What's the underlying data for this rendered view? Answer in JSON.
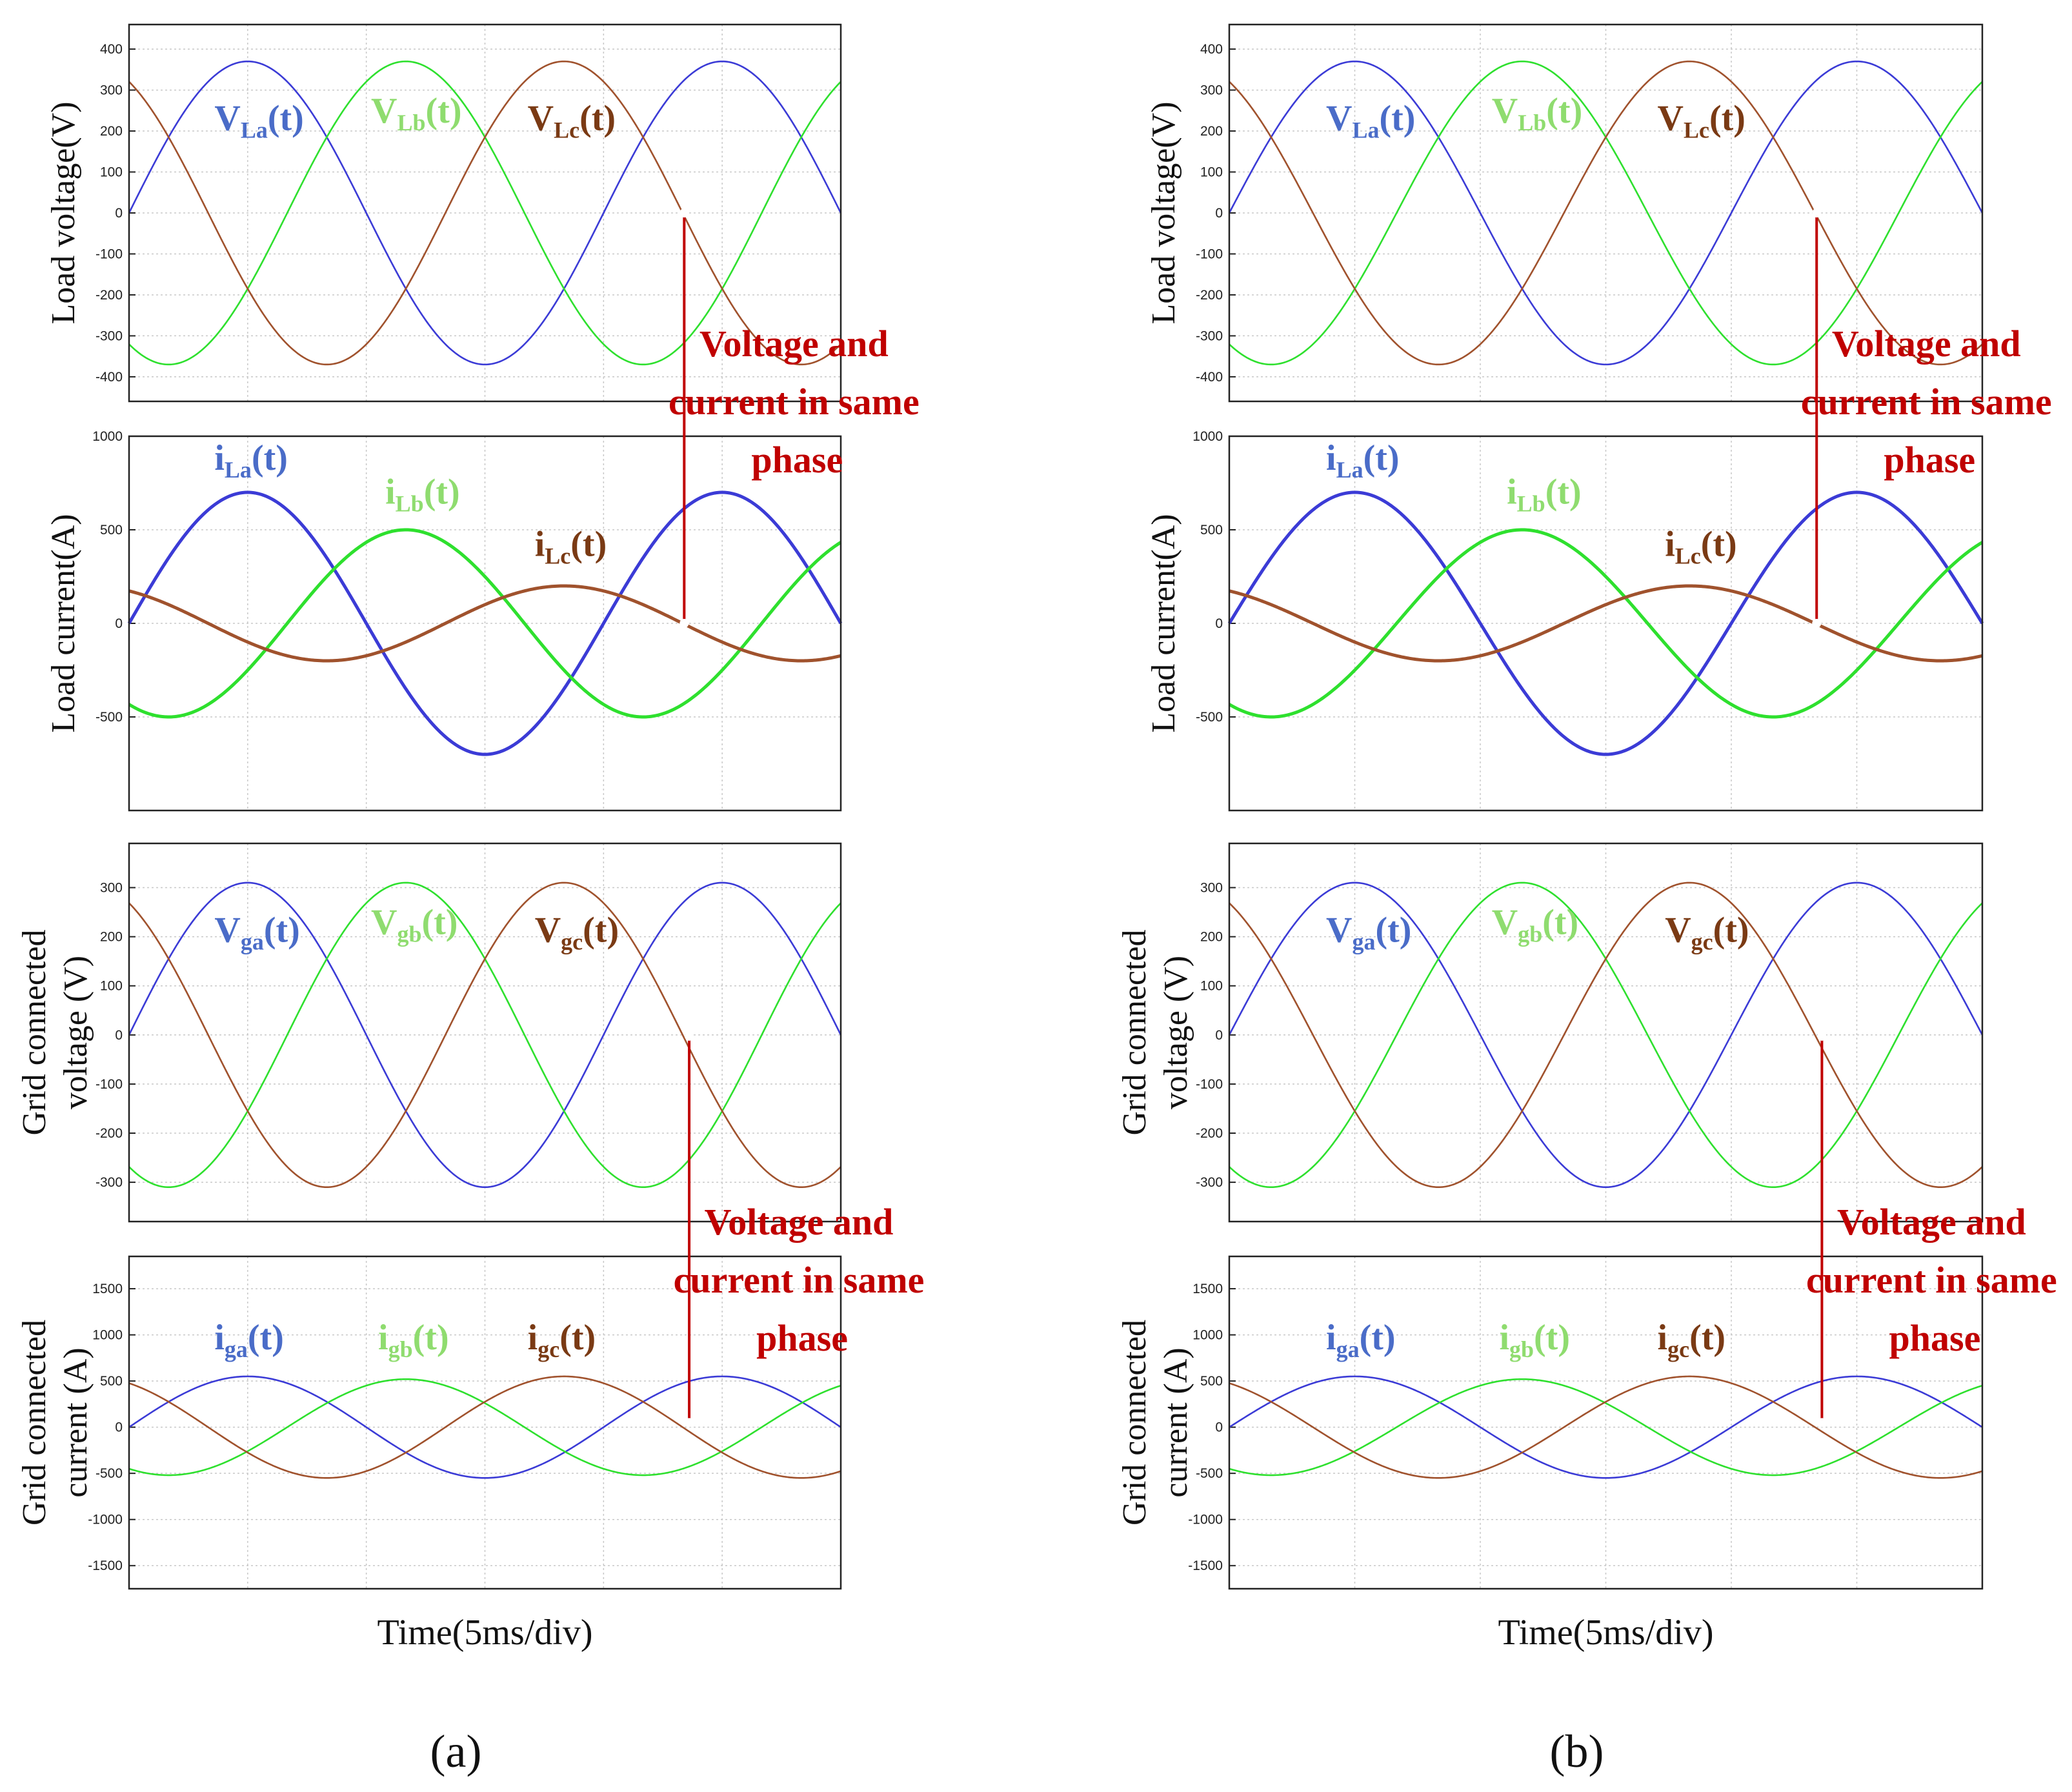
{
  "figure": {
    "panel_labels": [
      "(a)",
      "(b)"
    ],
    "colors": {
      "phase_a": "#3b3bd6",
      "phase_b": "#2ee02e",
      "phase_c": "#a0522d",
      "annotation": "#c00000",
      "label_a": "#4a6cc8",
      "label_b": "#8fdc6f",
      "label_c": "#7a3a14",
      "grid": "#c8c8c8",
      "axes": "#222222"
    }
  },
  "chart_data": [
    {
      "type": "line",
      "id": "load-voltage",
      "ylabel": "Load voltage(V)",
      "ylabel_lines": [
        "Load voltage(V)"
      ],
      "yticks": [
        400,
        300,
        200,
        100,
        0,
        -100,
        -200,
        -300,
        -400
      ],
      "ylim": [
        -460,
        460
      ],
      "xlim_ms": [
        0,
        30
      ],
      "x_grid_ms": [
        0,
        5,
        10,
        15,
        20,
        25,
        30
      ],
      "xlabel": "",
      "series": [
        {
          "name": "V_La(t)",
          "phase": "a",
          "amplitude": 370,
          "phase_deg": 0,
          "line_width": "thin"
        },
        {
          "name": "V_Lb(t)",
          "phase": "b",
          "amplitude": 370,
          "phase_deg": -120,
          "line_width": "thin"
        },
        {
          "name": "V_Lc(t)",
          "phase": "c",
          "amplitude": 370,
          "phase_deg": 120,
          "line_width": "thin"
        }
      ],
      "frequency_hz": 50,
      "labels": [
        {
          "base": "V",
          "sub": "La",
          "suffix": "(t)",
          "phase": "a"
        },
        {
          "base": "V",
          "sub": "Lb",
          "suffix": "(t)",
          "phase": "b"
        },
        {
          "base": "V",
          "sub": "Lc",
          "suffix": "(t)",
          "phase": "c"
        }
      ]
    },
    {
      "type": "line",
      "id": "load-current",
      "ylabel": "Load current(A)",
      "ylabel_lines": [
        "Load current(A)"
      ],
      "yticks": [
        1000,
        500,
        0,
        -500
      ],
      "ylim": [
        -1000,
        1000
      ],
      "xlim_ms": [
        0,
        30
      ],
      "x_grid_ms": [
        0,
        5,
        10,
        15,
        20,
        25,
        30
      ],
      "xlabel": "",
      "series": [
        {
          "name": "i_La(t)",
          "phase": "a",
          "amplitude": 700,
          "phase_deg": 0,
          "line_width": "thick"
        },
        {
          "name": "i_Lb(t)",
          "phase": "b",
          "amplitude": 500,
          "phase_deg": -120,
          "line_width": "thick"
        },
        {
          "name": "i_Lc(t)",
          "phase": "c",
          "amplitude": 200,
          "phase_deg": 120,
          "line_width": "thick"
        }
      ],
      "frequency_hz": 50,
      "labels": [
        {
          "base": "i",
          "sub": "La",
          "suffix": "(t)",
          "phase": "a"
        },
        {
          "base": "i",
          "sub": "Lb",
          "suffix": "(t)",
          "phase": "b"
        },
        {
          "base": "i",
          "sub": "Lc",
          "suffix": "(t)",
          "phase": "c"
        }
      ]
    },
    {
      "type": "line",
      "id": "grid-voltage",
      "ylabel": "Grid connected voltage (V)",
      "ylabel_lines": [
        "Grid connected",
        "voltage (V)"
      ],
      "yticks": [
        300,
        200,
        100,
        0,
        -100,
        -200,
        -300
      ],
      "ylim": [
        -380,
        390
      ],
      "xlim_ms": [
        0,
        30
      ],
      "x_grid_ms": [
        0,
        5,
        10,
        15,
        20,
        25,
        30
      ],
      "xlabel": "",
      "series": [
        {
          "name": "V_ga(t)",
          "phase": "a",
          "amplitude": 310,
          "phase_deg": 0,
          "line_width": "thin"
        },
        {
          "name": "V_gb(t)",
          "phase": "b",
          "amplitude": 310,
          "phase_deg": -120,
          "line_width": "thin"
        },
        {
          "name": "V_gc(t)",
          "phase": "c",
          "amplitude": 310,
          "phase_deg": 120,
          "line_width": "thin"
        }
      ],
      "frequency_hz": 50,
      "labels": [
        {
          "base": "V",
          "sub": "ga",
          "suffix": "(t)",
          "phase": "a"
        },
        {
          "base": "V",
          "sub": "gb",
          "suffix": "(t)",
          "phase": "b"
        },
        {
          "base": "V",
          "sub": "gc",
          "suffix": "(t)",
          "phase": "c"
        }
      ]
    },
    {
      "type": "line",
      "id": "grid-current",
      "ylabel": "Grid connected current (A)",
      "ylabel_lines": [
        "Grid connected",
        "current (A)"
      ],
      "yticks": [
        1500,
        1000,
        500,
        0,
        -500,
        -1000,
        -1500
      ],
      "ylim": [
        -1750,
        1850
      ],
      "xlim_ms": [
        0,
        30
      ],
      "x_grid_ms": [
        0,
        5,
        10,
        15,
        20,
        25,
        30
      ],
      "xlabel": "Time(5ms/div)",
      "series": [
        {
          "name": "i_ga(t)",
          "phase": "a",
          "amplitude": 550,
          "phase_deg": 0,
          "line_width": "thin"
        },
        {
          "name": "i_gb(t)",
          "phase": "b",
          "amplitude": 520,
          "phase_deg": -120,
          "line_width": "thin"
        },
        {
          "name": "i_gc(t)",
          "phase": "c",
          "amplitude": 550,
          "phase_deg": 120,
          "line_width": "thin"
        }
      ],
      "frequency_hz": 50,
      "labels": [
        {
          "base": "i",
          "sub": "ga",
          "suffix": "(t)",
          "phase": "a"
        },
        {
          "base": "i",
          "sub": "gb",
          "suffix": "(t)",
          "phase": "b"
        },
        {
          "base": "i",
          "sub": "gc",
          "suffix": "(t)",
          "phase": "c"
        }
      ]
    }
  ],
  "annotations": [
    {
      "lines": [
        "Voltage and",
        "current in same",
        "phase"
      ],
      "spans": [
        "load-voltage",
        "load-current"
      ]
    },
    {
      "lines": [
        "Voltage and",
        "current in same",
        "phase"
      ],
      "spans": [
        "grid-voltage",
        "grid-current"
      ]
    }
  ]
}
